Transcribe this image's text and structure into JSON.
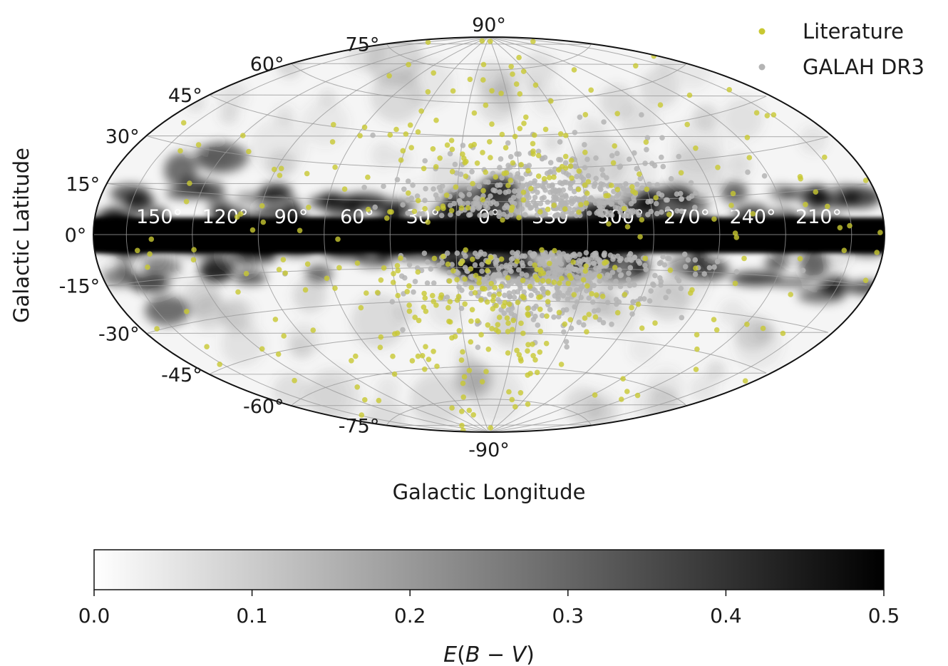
{
  "chart_data": {
    "type": "scatter",
    "projection": "Aitoff",
    "background_map": "E(B-V) dust reddening",
    "xlabel": "Galactic Longitude",
    "ylabel": "Galactic Latitude",
    "x_ticks": [
      "150°",
      "120°",
      "90°",
      "60°",
      "30°",
      "0°",
      "330°",
      "300°",
      "270°",
      "240°",
      "210°"
    ],
    "y_ticks": [
      "90°",
      "75°",
      "60°",
      "45°",
      "30°",
      "15°",
      "0°",
      "-15°",
      "-30°",
      "-45°",
      "-60°",
      "-75°",
      "-90°"
    ],
    "grid": true,
    "legend": {
      "position": "top-right"
    },
    "series": [
      {
        "name": "Literature",
        "color": "#c8c832"
      },
      {
        "name": "GALAH DR3",
        "color": "#b4b4b4"
      }
    ],
    "colorbar": {
      "label": "E(B-V)",
      "range": [
        0.0,
        0.5
      ],
      "ticks": [
        "0.0",
        "0.1",
        "0.2",
        "0.3",
        "0.4",
        "0.5"
      ],
      "colormap": "Greys"
    }
  }
}
